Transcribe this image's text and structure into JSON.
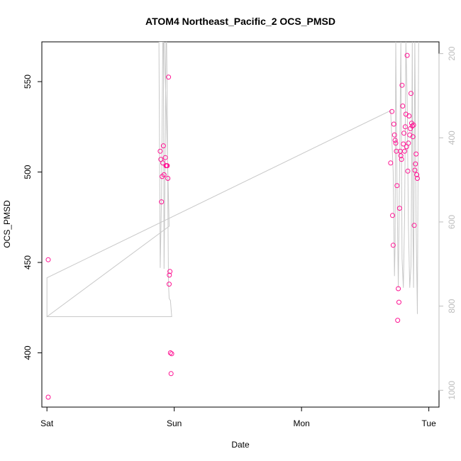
{
  "chart_data": {
    "type": "scatter",
    "title": "ATOM4 Northeast_Pacific_2 OCS_PMSD",
    "xlabel": "Date",
    "ylabel": "OCS_PMSD",
    "x_unit": "days since Sat 00:00",
    "xlim": [
      -0.04,
      3.08
    ],
    "ylim": [
      370,
      572
    ],
    "x_ticks": [
      {
        "value": 0,
        "label": "Sat"
      },
      {
        "value": 1,
        "label": "Sun"
      },
      {
        "value": 2,
        "label": "Mon"
      },
      {
        "value": 3,
        "label": "Tue"
      }
    ],
    "y_ticks": [
      400,
      450,
      500,
      550
    ],
    "y2_ticks": [
      200,
      400,
      600,
      800,
      1000
    ],
    "y2_lim": [
      172,
      1040
    ],
    "y2_reversed": true,
    "grid": false,
    "colors": {
      "points": "#ff1493",
      "line": "#c8c8c8",
      "axis": "#000000",
      "right_axis": "#bdbdbd"
    },
    "series": [
      {
        "kind": "points",
        "x": [
          0.01,
          0.01,
          0.89,
          0.895,
          0.9,
          0.905,
          0.91,
          0.915,
          0.92,
          0.93,
          0.935,
          0.94,
          0.945,
          0.95,
          0.955,
          0.96,
          0.962,
          0.966,
          0.97,
          0.975,
          0.98,
          2.7,
          2.71,
          2.715,
          2.72,
          2.725,
          2.73,
          2.735,
          2.74,
          2.745,
          2.75,
          2.755,
          2.76,
          2.765,
          2.77,
          2.775,
          2.78,
          2.785,
          2.79,
          2.795,
          2.8,
          2.805,
          2.81,
          2.815,
          2.82,
          2.825,
          2.83,
          2.835,
          2.84,
          2.845,
          2.85,
          2.855,
          2.86,
          2.865,
          2.87,
          2.875,
          2.88,
          2.885,
          2.89,
          2.895,
          2.9,
          2.905,
          2.91
        ],
        "y": [
          451.5,
          375.5,
          511.5,
          507,
          483.5,
          497.5,
          505,
          514.5,
          498.5,
          508,
          503.5,
          503.5,
          503.5,
          496.5,
          552.5,
          438,
          443,
          445,
          400,
          388.5,
          399.5,
          505,
          533.5,
          476,
          459.5,
          526.5,
          520.5,
          517.5,
          516,
          511.5,
          492.5,
          418,
          435.5,
          428,
          480,
          511.5,
          509,
          507,
          548,
          536.5,
          515.5,
          521.5,
          511.5,
          525,
          532,
          514,
          564.5,
          500.5,
          516,
          531,
          520.5,
          524,
          543.5,
          527,
          525.5,
          519.5,
          526,
          470.5,
          501,
          504.5,
          510,
          498.5,
          496.5
        ]
      },
      {
        "kind": "line",
        "x": [
          0.0,
          0.0,
          0.98,
          0.97,
          0.96,
          0.955,
          0.95,
          0.945,
          0.94,
          0.935,
          0.93,
          0.925,
          0.92,
          0.915,
          0.91,
          0.9,
          0.89,
          0.88,
          0.9,
          0.92,
          0.925,
          0.935,
          0.95,
          0.96,
          0.0,
          0.0,
          2.7,
          2.72,
          2.73,
          2.735,
          2.74,
          2.75,
          2.76,
          2.77,
          2.78,
          2.79,
          2.8,
          2.81,
          2.82,
          2.83,
          2.84,
          2.85,
          2.86,
          2.865,
          2.87,
          2.875,
          2.88,
          2.89,
          2.9,
          2.91,
          2.92
        ],
        "y": [
          441.5,
          420,
          420,
          429,
          430,
          438,
          480,
          540,
          572,
          572,
          520,
          480,
          446.5,
          572,
          572,
          485,
          447,
          572,
          572,
          572,
          560,
          540,
          500,
          470,
          420,
          441.5,
          534,
          500,
          442.5,
          460,
          572,
          490,
          436,
          500,
          572,
          452,
          436,
          476,
          572,
          540,
          470,
          436,
          448,
          500,
          572,
          470,
          436,
          572,
          470,
          421.5,
          572
        ]
      }
    ]
  }
}
